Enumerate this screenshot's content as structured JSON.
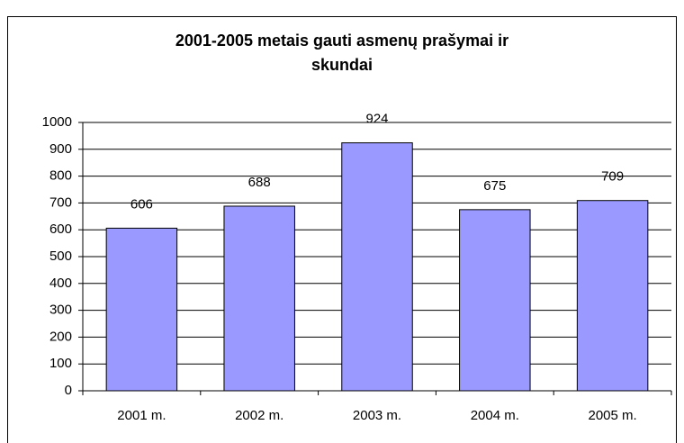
{
  "chart_data": {
    "type": "bar",
    "title": "2001-2005 metais gauti asmenų prašymai ir skundai",
    "categories": [
      "2001 m.",
      "2002 m.",
      "2003 m.",
      "2004 m.",
      "2005 m."
    ],
    "values": [
      606,
      688,
      924,
      675,
      709
    ],
    "color": "#9999ff",
    "ylim": [
      0,
      1000
    ],
    "yticks": [
      0,
      100,
      200,
      300,
      400,
      500,
      600,
      700,
      800,
      900,
      1000
    ],
    "grid": true
  }
}
